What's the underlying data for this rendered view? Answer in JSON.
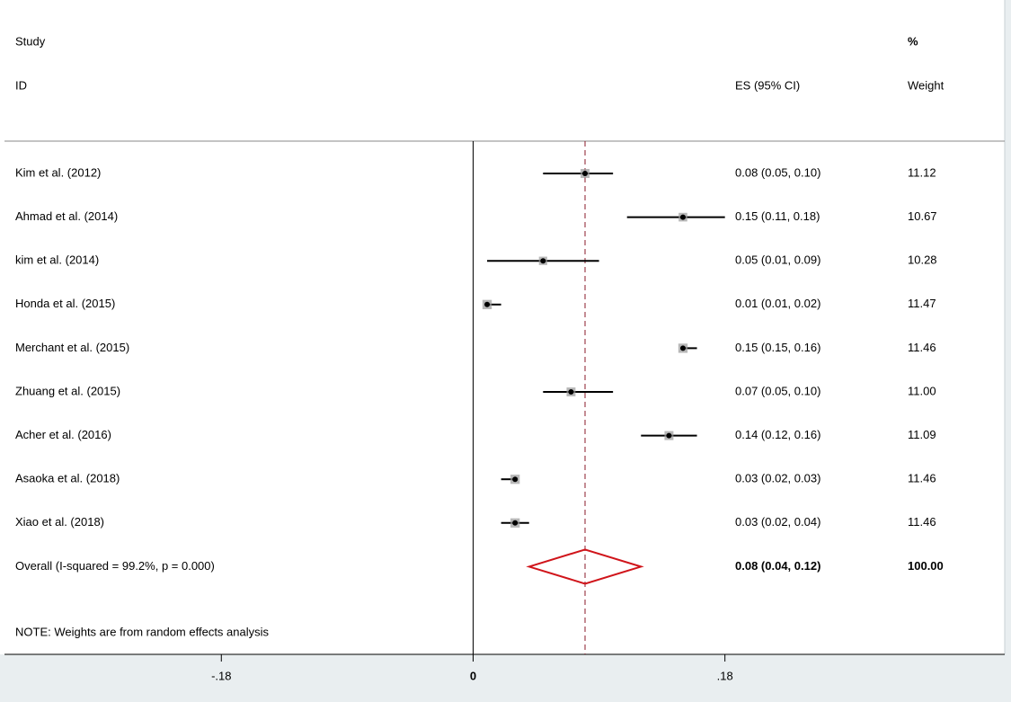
{
  "chart_data": {
    "type": "forest",
    "header": {
      "study": "Study",
      "id": "ID",
      "es": "ES (95% CI)",
      "pct": "%",
      "weight": "Weight"
    },
    "rows": [
      {
        "study": "Kim et al. (2012)",
        "es": 0.08,
        "ci": [
          0.05,
          0.1
        ],
        "weight": 11.12,
        "es_label": "0.08 (0.05, 0.10)",
        "weight_label": "11.12"
      },
      {
        "study": "Ahmad et al. (2014)",
        "es": 0.15,
        "ci": [
          0.11,
          0.18
        ],
        "weight": 10.67,
        "es_label": "0.15 (0.11, 0.18)",
        "weight_label": "10.67"
      },
      {
        "study": "kim et al. (2014)",
        "es": 0.05,
        "ci": [
          0.01,
          0.09
        ],
        "weight": 10.28,
        "es_label": "0.05 (0.01, 0.09)",
        "weight_label": "10.28"
      },
      {
        "study": "Honda et al. (2015)",
        "es": 0.01,
        "ci": [
          0.01,
          0.02
        ],
        "weight": 11.47,
        "es_label": "0.01 (0.01, 0.02)",
        "weight_label": "11.47"
      },
      {
        "study": "Merchant et al. (2015)",
        "es": 0.15,
        "ci": [
          0.15,
          0.16
        ],
        "weight": 11.46,
        "es_label": "0.15 (0.15, 0.16)",
        "weight_label": "11.46"
      },
      {
        "study": "Zhuang et al. (2015)",
        "es": 0.07,
        "ci": [
          0.05,
          0.1
        ],
        "weight": 11.0,
        "es_label": "0.07 (0.05, 0.10)",
        "weight_label": "11.00"
      },
      {
        "study": "Acher et al. (2016)",
        "es": 0.14,
        "ci": [
          0.12,
          0.16
        ],
        "weight": 11.09,
        "es_label": "0.14 (0.12, 0.16)",
        "weight_label": "11.09"
      },
      {
        "study": "Asaoka et al. (2018)",
        "es": 0.03,
        "ci": [
          0.02,
          0.03
        ],
        "weight": 11.46,
        "es_label": "0.03 (0.02, 0.03)",
        "weight_label": "11.46"
      },
      {
        "study": "Xiao et al. (2018)",
        "es": 0.03,
        "ci": [
          0.02,
          0.04
        ],
        "weight": 11.46,
        "es_label": "0.03 (0.02, 0.04)",
        "weight_label": "11.46"
      }
    ],
    "overall": {
      "study": "Overall  (I-squared = 99.2%, p = 0.000)",
      "es": 0.08,
      "ci": [
        0.04,
        0.12
      ],
      "weight": 100,
      "es_label": "0.08 (0.04, 0.12)",
      "weight_label": "100.00",
      "color": "#d0141a"
    },
    "note": "NOTE: Weights are from random effects analysis",
    "xlim": [
      -0.335,
      0.38
    ],
    "xticks": [
      {
        "value": -0.18,
        "label": "-.18"
      },
      0,
      {
        "value": 0.18,
        "label": ".18"
      }
    ],
    "reference_line_color": "#8b1a2a"
  }
}
